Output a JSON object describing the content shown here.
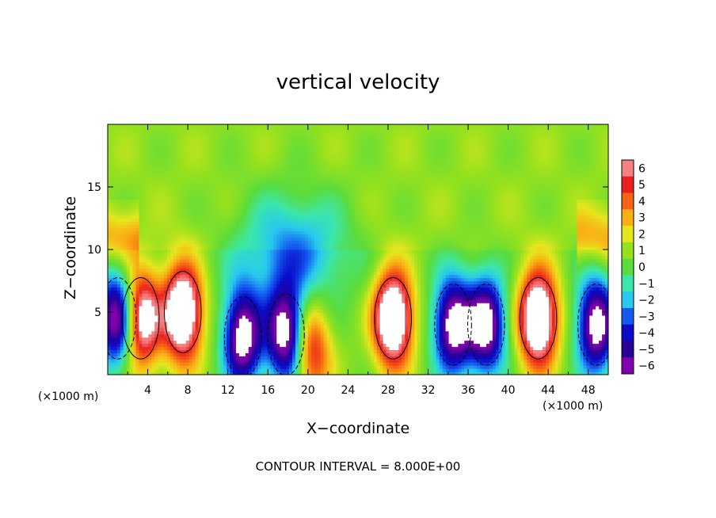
{
  "chart_data": {
    "type": "heatmap",
    "title": "vertical velocity",
    "xlabel": "X−coordinate",
    "ylabel": "Z−coordinate",
    "x_unit_left": "(×1000 m)",
    "x_unit_right": "(×1000 m)",
    "xlim": [
      0,
      50
    ],
    "ylim": [
      0,
      20
    ],
    "x_ticks": [
      4,
      8,
      12,
      16,
      20,
      24,
      28,
      32,
      36,
      40,
      44,
      48
    ],
    "y_ticks": [
      5,
      10,
      15
    ],
    "colorbar": {
      "ticks": [
        6,
        5,
        4,
        3,
        2,
        1,
        0,
        -1,
        -2,
        -3,
        -4,
        -5,
        -6
      ],
      "range": [
        -6,
        6
      ]
    },
    "annotation": "CONTOUR INTERVAL = 8.000E+00",
    "features": [
      {
        "kind": "updraft",
        "x": 3.3,
        "z": 4.5,
        "peak": 8
      },
      {
        "kind": "updraft",
        "x": 7.5,
        "z": 5.0,
        "peak": 9
      },
      {
        "kind": "updraft",
        "x": 20.3,
        "z": 2.0,
        "peak": 5
      },
      {
        "kind": "updraft",
        "x": 28.5,
        "z": 4.5,
        "peak": 9
      },
      {
        "kind": "updraft",
        "x": 43.0,
        "z": 4.5,
        "peak": 9
      },
      {
        "kind": "downdraft",
        "x": 1.0,
        "z": 4.5,
        "peak": -8
      },
      {
        "kind": "downdraft",
        "x": 13.5,
        "z": 3.0,
        "peak": -8
      },
      {
        "kind": "downdraft",
        "x": 17.8,
        "z": 3.2,
        "peak": -8
      },
      {
        "kind": "downdraft",
        "x": 34.5,
        "z": 4.0,
        "peak": -8
      },
      {
        "kind": "downdraft",
        "x": 37.8,
        "z": 4.0,
        "peak": -8
      },
      {
        "kind": "downdraft",
        "x": 48.8,
        "z": 4.0,
        "peak": -8
      },
      {
        "kind": "downdraft",
        "x": 18.5,
        "z": 10.0,
        "peak": -3.5
      }
    ]
  }
}
